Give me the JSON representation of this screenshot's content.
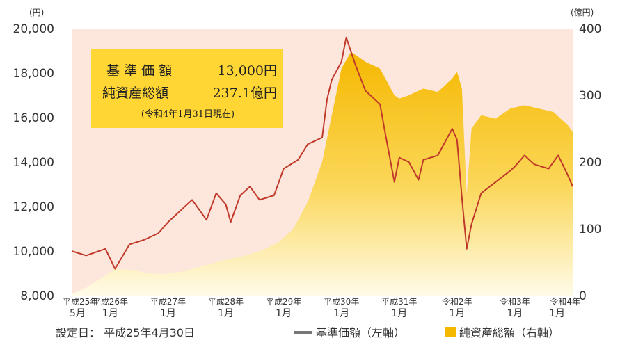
{
  "chart_data": {
    "type": "line",
    "left_unit": "(円)",
    "right_unit": "(億円)",
    "left_axis": {
      "ticks": [
        "8,000",
        "10,000",
        "12,000",
        "14,000",
        "16,000",
        "18,000",
        "20,000"
      ],
      "ylim": [
        8000,
        20000
      ]
    },
    "right_axis": {
      "ticks": [
        "0",
        "100",
        "200",
        "300",
        "400"
      ],
      "ylim": [
        0,
        400
      ]
    },
    "x_ticks": [
      {
        "line1": "平成25年",
        "line2": "5月"
      },
      {
        "line1": "平成26年",
        "line2": "1月"
      },
      {
        "line1": "平成27年",
        "line2": "1月"
      },
      {
        "line1": "平成28年",
        "line2": "1月"
      },
      {
        "line1": "平成29年",
        "line2": "1月"
      },
      {
        "line1": "平成30年",
        "line2": "1月"
      },
      {
        "line1": "平成31年",
        "line2": "1月"
      },
      {
        "line1": "令和2年",
        "line2": "1月"
      },
      {
        "line1": "令和3年",
        "line2": "1月"
      },
      {
        "line1": "令和4年",
        "line2": "1月"
      }
    ],
    "series": [
      {
        "name": "基準価額（左軸）",
        "axis": "left",
        "color": "#c0392b",
        "x": [
          "2013-05",
          "2013-08",
          "2013-12",
          "2014-02",
          "2014-05",
          "2014-08",
          "2014-11",
          "2015-01",
          "2015-04",
          "2015-06",
          "2015-08",
          "2015-09",
          "2015-11",
          "2016-01",
          "2016-02",
          "2016-04",
          "2016-06",
          "2016-08",
          "2016-11",
          "2016-12",
          "2017-01",
          "2017-04",
          "2017-06",
          "2017-09",
          "2017-10",
          "2017-11",
          "2018-01",
          "2018-02",
          "2018-04",
          "2018-06",
          "2018-09",
          "2018-10",
          "2018-12",
          "2019-01",
          "2019-03",
          "2019-05",
          "2019-06",
          "2019-09",
          "2019-12",
          "2020-01",
          "2020-02",
          "2020-03",
          "2020-04",
          "2020-06",
          "2020-09",
          "2020-12",
          "2021-01",
          "2021-03",
          "2021-05",
          "2021-08",
          "2021-10",
          "2021-12",
          "2022-01"
        ],
        "values": [
          10000,
          9800,
          10100,
          9200,
          10300,
          10500,
          10800,
          11300,
          11900,
          12300,
          11700,
          11400,
          12600,
          12100,
          11300,
          12500,
          12900,
          12300,
          12500,
          13100,
          13700,
          14100,
          14800,
          15100,
          16800,
          17700,
          18500,
          19600,
          18300,
          17200,
          16600,
          15400,
          13100,
          14200,
          14000,
          13200,
          14100,
          14300,
          15500,
          15000,
          12400,
          10100,
          11200,
          12600,
          13100,
          13600,
          13800,
          14300,
          13900,
          13700,
          14300,
          13400,
          12900
        ]
      },
      {
        "name": "純資産総額（右軸）",
        "axis": "right",
        "color": "#f5b800",
        "x": [
          "2013-05",
          "2013-08",
          "2013-12",
          "2014-02",
          "2014-06",
          "2014-09",
          "2014-12",
          "2015-04",
          "2015-08",
          "2015-12",
          "2016-04",
          "2016-08",
          "2016-12",
          "2017-03",
          "2017-06",
          "2017-09",
          "2017-11",
          "2018-01",
          "2018-03",
          "2018-06",
          "2018-09",
          "2018-12",
          "2019-01",
          "2019-03",
          "2019-06",
          "2019-09",
          "2019-12",
          "2020-01",
          "2020-02",
          "2020-03",
          "2020-04",
          "2020-06",
          "2020-09",
          "2020-12",
          "2021-03",
          "2021-06",
          "2021-09",
          "2021-12",
          "2022-01"
        ],
        "values": [
          2,
          12,
          30,
          40,
          38,
          33,
          32,
          36,
          44,
          52,
          58,
          66,
          80,
          100,
          140,
          200,
          270,
          340,
          365,
          350,
          340,
          300,
          295,
          300,
          310,
          305,
          325,
          335,
          310,
          150,
          250,
          270,
          265,
          280,
          285,
          280,
          275,
          255,
          245
        ]
      }
    ]
  },
  "annotation": {
    "row1_label": "基 準 価 額",
    "row1_value": "13,000円",
    "row2_label": "純資産総額",
    "row2_value": "237.1億円",
    "note": "(令和4年1月31日現在)",
    "box_color": "#ffd633"
  },
  "footer": {
    "set_date": "設定日：  平成25年4月30日",
    "legend_line": "基準価額（左軸）",
    "legend_area": "純資産総額（右軸）"
  },
  "colors": {
    "plot_background": "#fde7dc",
    "price_line": "#c0392b",
    "asset_area_top": "#f5b800",
    "asset_area_bottom": "#fffbe8",
    "legend_line": "#777777"
  }
}
